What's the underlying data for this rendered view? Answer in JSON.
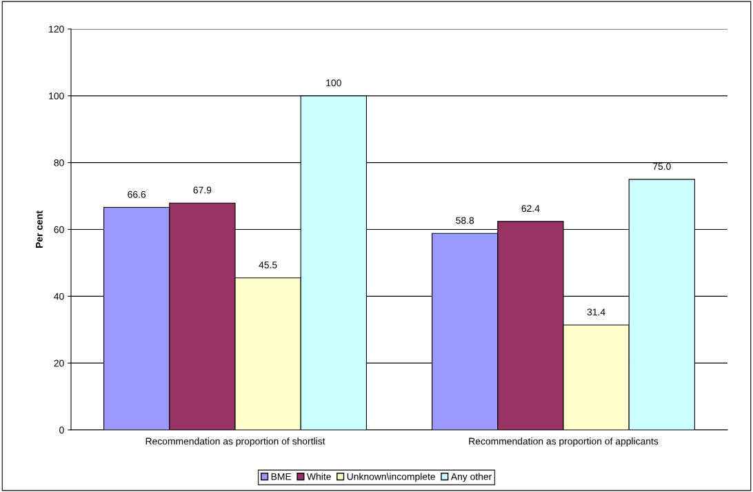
{
  "chart_data": {
    "type": "bar",
    "ylabel": "Per cent",
    "categories": [
      "Recommendation as proportion of shortlist",
      "Recommendation as proportion of applicants"
    ],
    "series": [
      {
        "name": "BME",
        "color": "#9999ff",
        "values": [
          66.6,
          58.8
        ],
        "value_labels": [
          "66.6",
          "58.8"
        ]
      },
      {
        "name": "White",
        "color": "#993366",
        "values": [
          67.9,
          62.4
        ],
        "value_labels": [
          "67.9",
          "62.4"
        ]
      },
      {
        "name": "Unknown\\incomplete",
        "color": "#ffffcc",
        "values": [
          45.5,
          31.4
        ],
        "value_labels": [
          "45.5",
          "31.4"
        ]
      },
      {
        "name": "Any other",
        "color": "#ccffff",
        "values": [
          100,
          75.0
        ],
        "value_labels": [
          "100",
          "75.0"
        ]
      }
    ],
    "ylim": [
      0,
      120
    ],
    "yticks": [
      0,
      20,
      40,
      60,
      80,
      100,
      120
    ],
    "grid": "y",
    "legend": "bottom"
  }
}
